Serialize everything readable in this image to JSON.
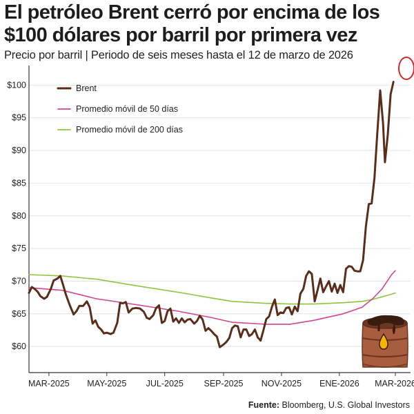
{
  "title": "El petróleo Brent cerró por encima de los $100 dólares por barril por primera vez",
  "subtitle": "Precio por barril | Periodo de seis meses hasta el 12 de marzo de 2026",
  "source_label": "Fuente:",
  "source_text": " Bloomberg, U.S. Global Investors",
  "icon": "oil-barrel-icon",
  "colors": {
    "brent": "#5a2d1a",
    "ma50": "#d1468f",
    "ma200": "#8cc63f",
    "highlight": "#d42a2a",
    "barrel": "#a0583a",
    "drop": "#f4b400"
  },
  "chart_data": {
    "type": "line",
    "ylim": [
      56,
      103
    ],
    "yticks": [
      60,
      65,
      70,
      75,
      80,
      85,
      90,
      95,
      100
    ],
    "ytick_labels": [
      "$60",
      "$65",
      "$70",
      "$75",
      "$80",
      "$85",
      "$90",
      "$95",
      "$100"
    ],
    "xlim": [
      "2025-02-08",
      "2026-03-17"
    ],
    "xticks": [
      {
        "date": "2025-03-01",
        "label": "MAR-2025"
      },
      {
        "date": "2025-05-01",
        "label": "MAY-2025"
      },
      {
        "date": "2025-07-01",
        "label": "JUL-2025"
      },
      {
        "date": "2025-09-01",
        "label": "SEP-2025"
      },
      {
        "date": "2025-11-01",
        "label": "NOV-2025"
      },
      {
        "date": "2026-01-01",
        "label": "ENE-2026"
      },
      {
        "date": "2026-03-01",
        "label": "MAR-2026"
      }
    ],
    "legend_position": "top-left",
    "series": [
      {
        "name": "Brent",
        "points": [
          [
            "2025-02-08",
            68.2
          ],
          [
            "2025-02-11",
            69.1
          ],
          [
            "2025-02-14",
            68.8
          ],
          [
            "2025-02-17",
            68.4
          ],
          [
            "2025-02-20",
            67.7
          ],
          [
            "2025-02-24",
            67.3
          ],
          [
            "2025-02-27",
            67.6
          ],
          [
            "2025-03-03",
            68.8
          ],
          [
            "2025-03-06",
            70.1
          ],
          [
            "2025-03-10",
            70.4
          ],
          [
            "2025-03-13",
            70.8
          ],
          [
            "2025-03-16",
            69.4
          ],
          [
            "2025-03-19",
            67.9
          ],
          [
            "2025-03-23",
            66.3
          ],
          [
            "2025-03-27",
            64.9
          ],
          [
            "2025-03-30",
            65.4
          ],
          [
            "2025-04-02",
            66.2
          ],
          [
            "2025-04-06",
            66.2
          ],
          [
            "2025-04-10",
            66.9
          ],
          [
            "2025-04-13",
            66.0
          ],
          [
            "2025-04-16",
            63.5
          ],
          [
            "2025-04-19",
            64.0
          ],
          [
            "2025-04-22",
            63.0
          ],
          [
            "2025-04-25",
            62.6
          ],
          [
            "2025-04-28",
            62.0
          ],
          [
            "2025-05-01",
            62.1
          ],
          [
            "2025-05-05",
            61.9
          ],
          [
            "2025-05-08",
            62.1
          ],
          [
            "2025-05-12",
            63.6
          ],
          [
            "2025-05-15",
            66.7
          ],
          [
            "2025-05-18",
            66.6
          ],
          [
            "2025-05-21",
            66.8
          ],
          [
            "2025-05-24",
            65.2
          ],
          [
            "2025-05-28",
            65.8
          ],
          [
            "2025-06-01",
            65.9
          ],
          [
            "2025-06-05",
            65.8
          ],
          [
            "2025-06-09",
            65.3
          ],
          [
            "2025-06-12",
            64.4
          ],
          [
            "2025-06-15",
            64.2
          ],
          [
            "2025-06-19",
            64.8
          ],
          [
            "2025-06-22",
            65.9
          ],
          [
            "2025-06-25",
            66.3
          ],
          [
            "2025-06-28",
            63.6
          ],
          [
            "2025-07-01",
            63.9
          ],
          [
            "2025-07-04",
            65.4
          ],
          [
            "2025-07-07",
            65.8
          ],
          [
            "2025-07-10",
            63.8
          ],
          [
            "2025-07-13",
            64.3
          ],
          [
            "2025-07-16",
            63.6
          ],
          [
            "2025-07-19",
            64.3
          ],
          [
            "2025-07-22",
            63.7
          ],
          [
            "2025-07-25",
            64.1
          ],
          [
            "2025-07-28",
            64.2
          ],
          [
            "2025-08-01",
            63.5
          ],
          [
            "2025-08-04",
            63.9
          ],
          [
            "2025-08-07",
            64.7
          ],
          [
            "2025-08-10",
            64.1
          ],
          [
            "2025-08-13",
            62.4
          ],
          [
            "2025-08-16",
            62.8
          ],
          [
            "2025-08-19",
            62.4
          ],
          [
            "2025-08-22",
            61.9
          ],
          [
            "2025-08-25",
            61.5
          ],
          [
            "2025-08-28",
            59.9
          ],
          [
            "2025-09-01",
            60.3
          ],
          [
            "2025-09-04",
            60.7
          ],
          [
            "2025-09-07",
            61.3
          ],
          [
            "2025-09-10",
            62.8
          ],
          [
            "2025-09-13",
            63.2
          ],
          [
            "2025-09-16",
            63.1
          ],
          [
            "2025-09-19",
            61.4
          ],
          [
            "2025-09-22",
            62.6
          ],
          [
            "2025-09-25",
            62.6
          ],
          [
            "2025-09-28",
            61.6
          ],
          [
            "2025-10-01",
            61.9
          ],
          [
            "2025-10-04",
            62.6
          ],
          [
            "2025-10-07",
            61.4
          ],
          [
            "2025-10-10",
            60.9
          ],
          [
            "2025-10-13",
            62.5
          ],
          [
            "2025-10-16",
            64.2
          ],
          [
            "2025-10-19",
            64.6
          ],
          [
            "2025-10-22",
            66.1
          ],
          [
            "2025-10-25",
            67.2
          ],
          [
            "2025-10-28",
            64.8
          ],
          [
            "2025-10-31",
            65.2
          ],
          [
            "2025-11-03",
            65.1
          ],
          [
            "2025-11-06",
            65.9
          ],
          [
            "2025-11-09",
            66.0
          ],
          [
            "2025-11-12",
            64.9
          ],
          [
            "2025-11-15",
            66.1
          ],
          [
            "2025-11-18",
            65.4
          ],
          [
            "2025-11-21",
            68.1
          ],
          [
            "2025-11-24",
            68.8
          ],
          [
            "2025-11-27",
            70.8
          ],
          [
            "2025-11-30",
            71.5
          ],
          [
            "2025-12-03",
            71.1
          ],
          [
            "2025-12-06",
            66.9
          ],
          [
            "2025-12-09",
            68.6
          ],
          [
            "2025-12-12",
            70.4
          ],
          [
            "2025-12-15",
            68.3
          ],
          [
            "2025-12-18",
            69.2
          ],
          [
            "2025-12-21",
            70.0
          ],
          [
            "2025-12-24",
            68.4
          ],
          [
            "2025-12-27",
            69.6
          ],
          [
            "2025-12-30",
            68.2
          ],
          [
            "2026-01-02",
            69.4
          ],
          [
            "2026-01-05",
            68.3
          ],
          [
            "2026-01-08",
            71.9
          ],
          [
            "2026-01-11",
            72.3
          ],
          [
            "2026-01-14",
            72.2
          ],
          [
            "2026-01-17",
            71.6
          ],
          [
            "2026-01-20",
            71.5
          ],
          [
            "2026-01-23",
            71.5
          ],
          [
            "2026-01-26",
            73.2
          ],
          [
            "2026-01-29",
            78.4
          ],
          [
            "2026-02-01",
            81.8
          ],
          [
            "2026-02-04",
            81.9
          ],
          [
            "2026-02-07",
            85.8
          ],
          [
            "2026-02-10",
            92.8
          ],
          [
            "2026-02-13",
            99.2
          ],
          [
            "2026-02-16",
            94.2
          ],
          [
            "2026-02-18",
            88.2
          ],
          [
            "2026-02-21",
            92.4
          ],
          [
            "2026-02-24",
            98.6
          ],
          [
            "2026-02-27",
            100.5
          ]
        ]
      },
      {
        "name": "Promedio móvil de 50 días",
        "points": [
          [
            "2025-02-08",
            69.0
          ],
          [
            "2025-03-15",
            68.6
          ],
          [
            "2025-04-20",
            67.3
          ],
          [
            "2025-06-01",
            66.4
          ],
          [
            "2025-07-15",
            65.4
          ],
          [
            "2025-08-20",
            64.4
          ],
          [
            "2025-09-10",
            63.7
          ],
          [
            "2025-10-15",
            63.4
          ],
          [
            "2025-11-10",
            63.4
          ],
          [
            "2025-12-05",
            64.0
          ],
          [
            "2026-01-05",
            65.0
          ],
          [
            "2026-01-25",
            66.0
          ],
          [
            "2026-02-05",
            67.3
          ],
          [
            "2026-02-15",
            68.8
          ],
          [
            "2026-02-25",
            71.0
          ],
          [
            "2026-03-01",
            71.6
          ]
        ]
      },
      {
        "name": "Promedio móvil de 200 días",
        "points": [
          [
            "2025-02-08",
            71.0
          ],
          [
            "2025-03-15",
            70.8
          ],
          [
            "2025-04-20",
            70.3
          ],
          [
            "2025-06-01",
            69.3
          ],
          [
            "2025-07-15",
            68.3
          ],
          [
            "2025-08-20",
            67.4
          ],
          [
            "2025-09-10",
            66.9
          ],
          [
            "2025-10-15",
            66.6
          ],
          [
            "2025-11-10",
            66.5
          ],
          [
            "2025-12-05",
            66.5
          ],
          [
            "2026-01-05",
            66.7
          ],
          [
            "2026-01-25",
            66.9
          ],
          [
            "2026-02-05",
            67.2
          ],
          [
            "2026-02-15",
            67.6
          ],
          [
            "2026-02-25",
            68.0
          ],
          [
            "2026-03-01",
            68.2
          ]
        ]
      }
    ]
  }
}
